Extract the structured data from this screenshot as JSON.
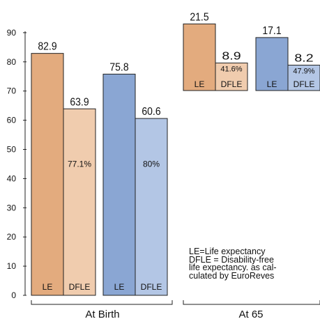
{
  "chart_data": {
    "type": "bar",
    "ylim": [
      0,
      90
    ],
    "yticks": [
      0,
      10,
      20,
      30,
      40,
      50,
      60,
      70,
      80,
      90
    ],
    "colors": {
      "women_le": "#e3ab7e",
      "women_dfle": "#f0ccae",
      "men_le": "#8aa6d3",
      "men_dfle": "#b3c6e5",
      "outline": "#222222"
    },
    "groups": [
      {
        "label": "At Birth",
        "bars": [
          {
            "series": "LE",
            "value": 82.9,
            "value_label": "82.9",
            "pct": "",
            "color_key": "women_le"
          },
          {
            "series": "DFLE",
            "value": 63.9,
            "value_label": "63.9",
            "pct": "77.1%",
            "color_key": "women_dfle"
          },
          {
            "series": "LE",
            "value": 75.8,
            "value_label": "75.8",
            "pct": "",
            "color_key": "men_le"
          },
          {
            "series": "DFLE",
            "value": 60.6,
            "value_label": "60.6",
            "pct": "80%",
            "color_key": "men_dfle"
          }
        ]
      },
      {
        "label": "At 65",
        "bars": [
          {
            "series": "LE",
            "value": 21.5,
            "value_label": "21.5",
            "pct": "",
            "color_key": "women_le"
          },
          {
            "series": "DFLE",
            "value": 8.9,
            "value_label": "8.9",
            "pct": "41.6%",
            "color_key": "women_dfle"
          },
          {
            "series": "LE",
            "value": 17.1,
            "value_label": "17.1",
            "pct": "",
            "color_key": "men_le"
          },
          {
            "series": "DFLE",
            "value": 8.2,
            "value_label": "8.2",
            "pct": "47.9%",
            "color_key": "men_dfle"
          }
        ]
      }
    ]
  },
  "note": {
    "lines": [
      "LE=Life expectancy",
      "DFLE = Disability-free",
      "life expectancy. as cal-",
      "culated by EuroReves"
    ]
  }
}
